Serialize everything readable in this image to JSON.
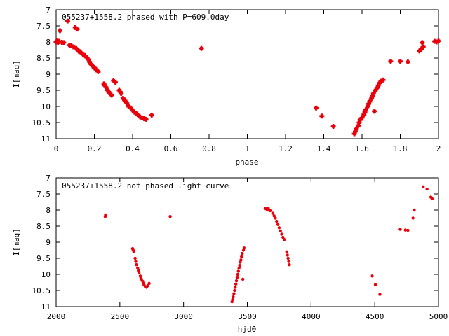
{
  "marker_color": "#e8000b",
  "chart_data": [
    {
      "type": "scatter",
      "title": "055237+1558.2 phased with P=609.0day",
      "xlabel": "phase",
      "ylabel": "I[mag]",
      "xlim": [
        0,
        2
      ],
      "ylim": [
        7,
        11
      ],
      "y_inverted": true,
      "grid": false,
      "x_ticks": [
        "0",
        "0.2",
        "0.4",
        "0.6",
        "0.8",
        "1",
        "1.2",
        "1.4",
        "1.6",
        "1.8",
        "2"
      ],
      "y_ticks": [
        "7",
        "7.5",
        "8",
        "8.5",
        "9",
        "9.5",
        "10",
        "10.5",
        "11"
      ],
      "series": [
        {
          "marker": "plus-bold",
          "points": [
            [
              0.0,
              8.0
            ],
            [
              0.005,
              7.97
            ],
            [
              0.01,
              8.02
            ],
            [
              0.015,
              7.98
            ],
            [
              0.02,
              7.65
            ],
            [
              0.03,
              8.01
            ],
            [
              0.04,
              8.02
            ],
            [
              0.06,
              7.35
            ],
            [
              0.07,
              8.1
            ],
            [
              0.08,
              8.12
            ],
            [
              0.09,
              8.15
            ],
            [
              0.1,
              7.55
            ],
            [
              0.105,
              8.2
            ],
            [
              0.11,
              7.6
            ],
            [
              0.115,
              8.25
            ],
            [
              0.12,
              8.3
            ],
            [
              0.13,
              8.33
            ],
            [
              0.14,
              8.38
            ],
            [
              0.15,
              8.42
            ],
            [
              0.16,
              8.48
            ],
            [
              0.17,
              8.55
            ],
            [
              0.175,
              8.62
            ],
            [
              0.18,
              8.68
            ],
            [
              0.19,
              8.74
            ],
            [
              0.2,
              8.8
            ],
            [
              0.21,
              8.86
            ],
            [
              0.22,
              8.92
            ],
            [
              0.25,
              9.3
            ],
            [
              0.255,
              9.35
            ],
            [
              0.26,
              9.4
            ],
            [
              0.27,
              9.5
            ],
            [
              0.275,
              9.55
            ],
            [
              0.28,
              9.6
            ],
            [
              0.29,
              9.65
            ],
            [
              0.3,
              9.2
            ],
            [
              0.31,
              9.25
            ],
            [
              0.33,
              9.5
            ],
            [
              0.335,
              9.55
            ],
            [
              0.34,
              9.6
            ],
            [
              0.35,
              9.75
            ],
            [
              0.36,
              9.82
            ],
            [
              0.37,
              9.9
            ],
            [
              0.38,
              10.0
            ],
            [
              0.39,
              10.05
            ],
            [
              0.4,
              10.12
            ],
            [
              0.41,
              10.18
            ],
            [
              0.42,
              10.22
            ],
            [
              0.43,
              10.28
            ],
            [
              0.44,
              10.33
            ],
            [
              0.45,
              10.36
            ],
            [
              0.46,
              10.38
            ],
            [
              0.47,
              10.4
            ],
            [
              0.5,
              10.27
            ],
            [
              0.76,
              8.2
            ],
            [
              1.36,
              10.05
            ],
            [
              1.39,
              10.3
            ],
            [
              1.45,
              10.62
            ],
            [
              1.56,
              10.85
            ],
            [
              1.565,
              10.78
            ],
            [
              1.57,
              10.7
            ],
            [
              1.58,
              10.6
            ],
            [
              1.585,
              10.5
            ],
            [
              1.59,
              10.42
            ],
            [
              1.6,
              10.35
            ],
            [
              1.61,
              10.25
            ],
            [
              1.615,
              10.18
            ],
            [
              1.62,
              10.1
            ],
            [
              1.63,
              10.0
            ],
            [
              1.635,
              9.92
            ],
            [
              1.64,
              9.85
            ],
            [
              1.65,
              9.75
            ],
            [
              1.655,
              9.68
            ],
            [
              1.66,
              9.6
            ],
            [
              1.665,
              10.15
            ],
            [
              1.67,
              9.5
            ],
            [
              1.68,
              9.42
            ],
            [
              1.685,
              9.35
            ],
            [
              1.69,
              9.28
            ],
            [
              1.7,
              9.22
            ],
            [
              1.71,
              9.18
            ],
            [
              1.75,
              8.6
            ],
            [
              1.8,
              8.6
            ],
            [
              1.84,
              8.62
            ],
            [
              1.9,
              8.28
            ],
            [
              1.91,
              8.22
            ],
            [
              1.915,
              8.02
            ],
            [
              1.92,
              8.15
            ],
            [
              1.98,
              7.98
            ],
            [
              1.99,
              8.0
            ],
            [
              2.0,
              7.97
            ]
          ]
        }
      ]
    },
    {
      "type": "scatter",
      "title": "055237+1558.2 not phased light curve",
      "xlabel": "hjd0",
      "ylabel": "I[mag]",
      "xlim": [
        2000,
        5000
      ],
      "ylim": [
        7,
        11
      ],
      "y_inverted": true,
      "grid": false,
      "x_ticks": [
        "2000",
        "2500",
        "3000",
        "3500",
        "4000",
        "4500",
        "5000"
      ],
      "y_ticks": [
        "7",
        "7.5",
        "8",
        "8.5",
        "9",
        "9.5",
        "10",
        "10.5",
        "11"
      ],
      "series": [
        {
          "marker": "dot",
          "points": [
            [
              2385,
              8.2
            ],
            [
              2388,
              8.15
            ],
            [
              2600,
              9.2
            ],
            [
              2605,
              9.25
            ],
            [
              2610,
              9.3
            ],
            [
              2620,
              9.5
            ],
            [
              2625,
              9.6
            ],
            [
              2630,
              9.7
            ],
            [
              2640,
              9.8
            ],
            [
              2645,
              9.88
            ],
            [
              2650,
              9.95
            ],
            [
              2660,
              10.05
            ],
            [
              2665,
              10.1
            ],
            [
              2670,
              10.15
            ],
            [
              2680,
              10.22
            ],
            [
              2685,
              10.28
            ],
            [
              2690,
              10.33
            ],
            [
              2700,
              10.38
            ],
            [
              2710,
              10.4
            ],
            [
              2720,
              10.35
            ],
            [
              2730,
              10.28
            ],
            [
              2895,
              8.2
            ],
            [
              3380,
              10.85
            ],
            [
              3385,
              10.78
            ],
            [
              3390,
              10.7
            ],
            [
              3395,
              10.6
            ],
            [
              3400,
              10.5
            ],
            [
              3405,
              10.4
            ],
            [
              3410,
              10.3
            ],
            [
              3415,
              10.2
            ],
            [
              3420,
              10.1
            ],
            [
              3425,
              10.0
            ],
            [
              3430,
              9.9
            ],
            [
              3435,
              9.8
            ],
            [
              3440,
              9.72
            ],
            [
              3445,
              9.62
            ],
            [
              3450,
              9.55
            ],
            [
              3455,
              9.45
            ],
            [
              3460,
              9.35
            ],
            [
              3465,
              10.15
            ],
            [
              3470,
              9.25
            ],
            [
              3475,
              9.18
            ],
            [
              3640,
              7.95
            ],
            [
              3650,
              7.97
            ],
            [
              3660,
              8.0
            ],
            [
              3665,
              7.95
            ],
            [
              3680,
              8.02
            ],
            [
              3700,
              8.1
            ],
            [
              3710,
              8.18
            ],
            [
              3720,
              8.25
            ],
            [
              3730,
              8.35
            ],
            [
              3740,
              8.45
            ],
            [
              3750,
              8.55
            ],
            [
              3760,
              8.65
            ],
            [
              3770,
              8.75
            ],
            [
              3780,
              8.85
            ],
            [
              3790,
              8.92
            ],
            [
              3810,
              9.3
            ],
            [
              3815,
              9.4
            ],
            [
              3820,
              9.5
            ],
            [
              3825,
              9.6
            ],
            [
              3830,
              9.7
            ],
            [
              4480,
              10.05
            ],
            [
              4505,
              10.32
            ],
            [
              4540,
              10.62
            ],
            [
              4700,
              8.6
            ],
            [
              4740,
              8.62
            ],
            [
              4760,
              8.63
            ],
            [
              4800,
              8.25
            ],
            [
              4810,
              8.0
            ],
            [
              4880,
              7.28
            ],
            [
              4910,
              7.35
            ],
            [
              4940,
              7.6
            ],
            [
              4950,
              7.65
            ]
          ]
        }
      ]
    }
  ]
}
